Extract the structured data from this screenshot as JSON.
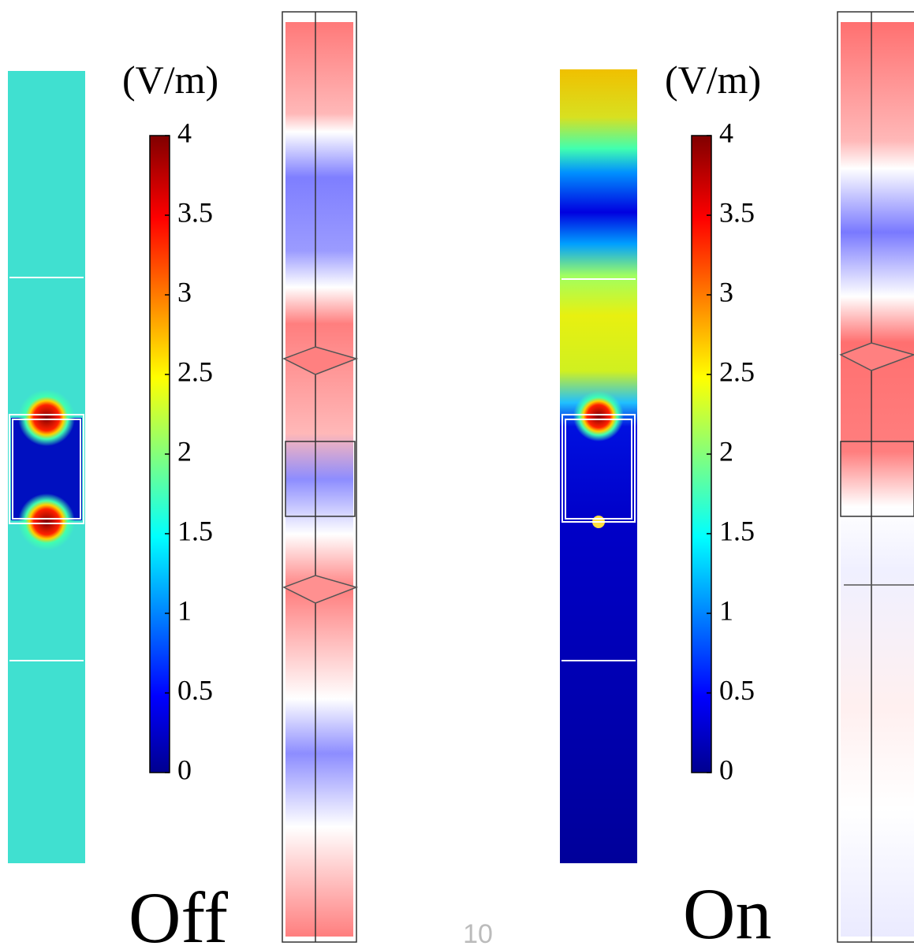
{
  "panels": [
    {
      "unit": "(V/m)",
      "state": "Off",
      "colorbar_ticks": [
        0,
        0.5,
        1,
        1.5,
        2,
        2.5,
        3,
        3.5,
        4
      ]
    },
    {
      "unit": "(V/m)",
      "state": "On",
      "colorbar_ticks": [
        0,
        0.5,
        1,
        1.5,
        2,
        2.5,
        3,
        3.5,
        4
      ]
    }
  ],
  "page_number": "10"
}
